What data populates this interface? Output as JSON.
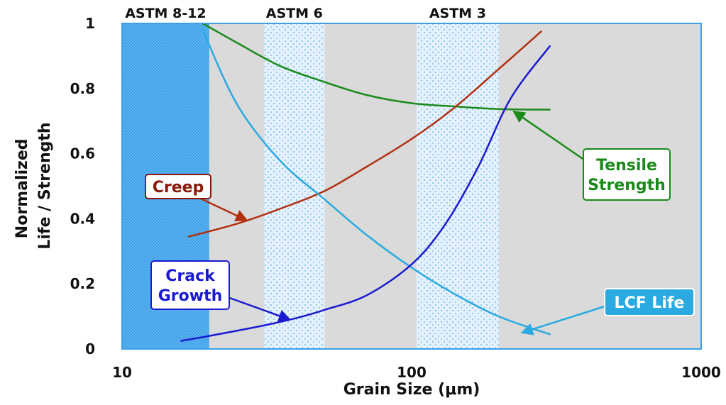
{
  "chart_data": {
    "type": "line",
    "title": "",
    "xlabel": "Grain Size (μm)",
    "ylabel_lines": [
      "Normalized",
      "Life / Strength"
    ],
    "x_scale": "log",
    "xlim": [
      10,
      1000
    ],
    "ylim": [
      0,
      1
    ],
    "x_ticks": [
      10,
      100,
      1000
    ],
    "x_tick_labels": [
      "10",
      "100",
      "1000"
    ],
    "y_ticks": [
      0,
      0.2,
      0.4,
      0.6,
      0.8,
      1
    ],
    "y_tick_labels": [
      "0",
      "0.2",
      "0.4",
      "0.6",
      "0.8",
      "1"
    ],
    "grid": false,
    "bands": [
      {
        "label": "ASTM 8-12",
        "x_range": [
          10,
          20
        ],
        "color": "#3aa0ea",
        "pattern": "dense-dots"
      },
      {
        "label": "ASTM 6",
        "x_range": [
          31,
          50
        ],
        "color": "#e4f1fc",
        "pattern": "sparse-dots"
      },
      {
        "label": "ASTM 3",
        "x_range": [
          104,
          200
        ],
        "color": "#e4f1fc",
        "pattern": "sparse-dots"
      }
    ],
    "plot_background": "#dadada",
    "series": [
      {
        "name": "Tensile Strength",
        "color": "#1a8a1a",
        "x": [
          19,
          25,
          35,
          50,
          70,
          100,
          140,
          200,
          300
        ],
        "y": [
          1.0,
          0.94,
          0.87,
          0.82,
          0.78,
          0.755,
          0.745,
          0.737,
          0.735
        ]
      },
      {
        "name": "Creep",
        "color": "#b03010",
        "x": [
          17,
          25,
          35,
          50,
          70,
          100,
          140,
          200,
          280
        ],
        "y": [
          0.345,
          0.385,
          0.43,
          0.485,
          0.56,
          0.645,
          0.74,
          0.86,
          0.975
        ]
      },
      {
        "name": "LCF Life",
        "color": "#2aaae0",
        "x": [
          19,
          25,
          35,
          50,
          70,
          100,
          140,
          200,
          300
        ],
        "y": [
          0.98,
          0.75,
          0.58,
          0.46,
          0.35,
          0.25,
          0.17,
          0.1,
          0.045
        ]
      },
      {
        "name": "Crack Growth",
        "color": "#1a1ad0",
        "x": [
          16,
          20,
          30,
          40,
          50,
          70,
          100,
          130,
          170,
          220,
          300
        ],
        "y": [
          0.025,
          0.04,
          0.07,
          0.095,
          0.12,
          0.165,
          0.26,
          0.38,
          0.56,
          0.77,
          0.93
        ]
      }
    ],
    "callouts": [
      {
        "label_lines": [
          "Creep"
        ],
        "series": "Creep",
        "text_color": "#8a1a0a",
        "border_color": "#8a1a0a",
        "arrow_color": "#b03010",
        "arrow_to": {
          "x": 27,
          "y": 0.395
        }
      },
      {
        "label_lines": [
          "Crack",
          "Growth"
        ],
        "series": "Crack Growth",
        "text_color": "#1a1ad0",
        "border_color": "#1a1ad0",
        "arrow_color": "#1a1ad0",
        "arrow_to": {
          "x": 38,
          "y": 0.09
        }
      },
      {
        "label_lines": [
          "Tensile",
          "Strength"
        ],
        "series": "Tensile Strength",
        "text_color": "#1a8a1a",
        "border_color": "#1a8a1a",
        "arrow_color": "#1a8a1a",
        "arrow_to": {
          "x": 225,
          "y": 0.73
        }
      },
      {
        "label_lines": [
          "LCF Life"
        ],
        "series": "LCF Life",
        "text_color": "#ffffff",
        "fill": "#2aaae0",
        "border_color": "#ffffff",
        "arrow_color": "#2aaae0",
        "arrow_to": {
          "x": 240,
          "y": 0.05
        }
      }
    ]
  }
}
